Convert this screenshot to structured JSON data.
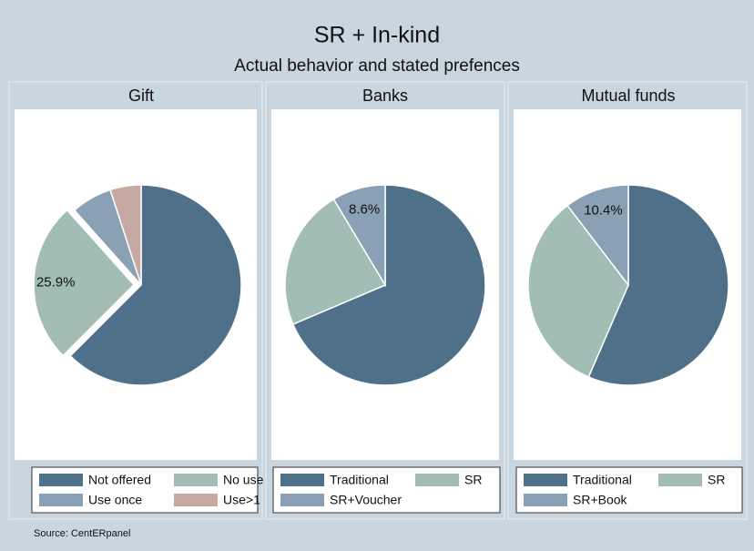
{
  "title": "SR + In-kind",
  "subtitle": "Actual behavior and stated prefences",
  "source": "Source: CentERpanel",
  "chart_data": [
    {
      "type": "pie",
      "title": "Gift",
      "categories": [
        "Not offered",
        "No use",
        "Use once",
        "Use>1"
      ],
      "values": [
        62.5,
        25.9,
        6.6,
        5.0
      ],
      "value_labels": [
        null,
        "25.9%",
        null,
        null
      ],
      "explode": [
        false,
        true,
        false,
        false
      ],
      "colors": [
        "#4e7089",
        "#a1bdb5",
        "#8aa0b5",
        "#c8a8a3"
      ]
    },
    {
      "type": "pie",
      "title": "Banks",
      "categories": [
        "Traditional",
        "SR",
        "SR+Voucher"
      ],
      "values": [
        68.6,
        22.8,
        8.6
      ],
      "value_labels": [
        null,
        null,
        "8.6%"
      ],
      "explode": [
        false,
        false,
        false
      ],
      "colors": [
        "#4e7089",
        "#a1bdb5",
        "#8aa0b5"
      ]
    },
    {
      "type": "pie",
      "title": "Mutual funds",
      "categories": [
        "Traditional",
        "SR",
        "SR+Book"
      ],
      "values": [
        56.5,
        33.1,
        10.4
      ],
      "value_labels": [
        null,
        null,
        "10.4%"
      ],
      "explode": [
        false,
        false,
        false
      ],
      "colors": [
        "#4e7089",
        "#a1bdb5",
        "#8aa0b5"
      ]
    }
  ]
}
